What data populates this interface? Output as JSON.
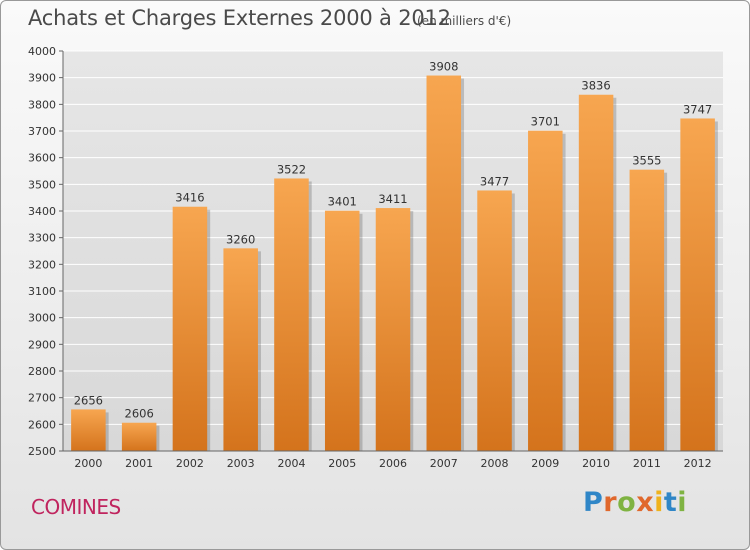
{
  "header": {
    "title": "Achats et Charges Externes 2000 à 2012",
    "subtitle": "(en milliers d'€)"
  },
  "commune": "COMINES",
  "logo": {
    "text": "Proxiti",
    "letters": [
      "P",
      "r",
      "o",
      "x",
      "i",
      "t",
      "i"
    ],
    "colors": [
      "#2f86c7",
      "#e0682c",
      "#7fb342",
      "#e0682c",
      "#efb21c",
      "#2f86c7",
      "#7fb342"
    ]
  },
  "chart_data": {
    "type": "bar",
    "title": "Achats et Charges Externes 2000 à 2012",
    "subtitle": "(en milliers d'€)",
    "categories": [
      "2000",
      "2001",
      "2002",
      "2003",
      "2004",
      "2005",
      "2006",
      "2007",
      "2008",
      "2009",
      "2010",
      "2011",
      "2012"
    ],
    "values": [
      2656,
      2606,
      3416,
      3260,
      3522,
      3401,
      3411,
      3908,
      3477,
      3701,
      3836,
      3555,
      3747
    ],
    "ylim": [
      2500,
      4000
    ],
    "yticks": [
      2500,
      2600,
      2700,
      2800,
      2900,
      3000,
      3100,
      3200,
      3300,
      3400,
      3500,
      3600,
      3700,
      3800,
      3900,
      4000
    ],
    "grid": true,
    "colors": {
      "bar_top": "#f7a650",
      "bar_bottom": "#d4731c",
      "grid": "#ffffff",
      "text": "#333333"
    }
  }
}
